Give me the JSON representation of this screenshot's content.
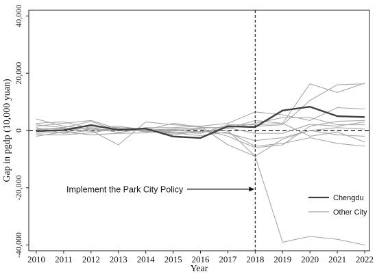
{
  "chart_data": {
    "type": "line",
    "xlabel": "Year",
    "ylabel": "Gap in pgdp (10,000 yuan)",
    "x": [
      2010,
      2011,
      2012,
      2013,
      2014,
      2015,
      2016,
      2017,
      2018,
      2019,
      2020,
      2021,
      2022
    ],
    "x_ticks": [
      "2010",
      "2011",
      "2012",
      "2013",
      "2014",
      "2015",
      "2016",
      "2017",
      "2018",
      "2019",
      "2020",
      "2021",
      "2022"
    ],
    "ylim": [
      -42000,
      42000
    ],
    "y_ticks": [
      {
        "value": 40000,
        "label": "40,000"
      },
      {
        "value": 20000,
        "label": "20,000"
      },
      {
        "value": 0,
        "label": "0"
      },
      {
        "value": -20000,
        "label": "-20,000"
      },
      {
        "value": -40000,
        "label": "-40,000"
      }
    ],
    "reference_lines": {
      "zero_line": 0,
      "policy_year": 2018
    },
    "annotation": {
      "text": "Implement the Park City Policy",
      "target_x": 2018,
      "target_y": -20500
    },
    "legend": {
      "placement": "bottom-right",
      "entries": [
        {
          "label": "Chengdu",
          "color": "#404040"
        },
        {
          "label": "Other City",
          "color": "#a8a8a8"
        }
      ]
    },
    "series": [
      {
        "name": "Chengdu",
        "role": "treated",
        "color": "#404040",
        "values": [
          -200,
          100,
          1900,
          200,
          700,
          -2100,
          -2600,
          1500,
          1200,
          7000,
          8300,
          5000,
          4700
        ]
      },
      {
        "role": "control",
        "values": [
          4000,
          1500,
          500,
          300,
          400,
          -500,
          -1000,
          2000,
          2000,
          2500,
          16300,
          13300,
          16500
        ]
      },
      {
        "role": "control",
        "values": [
          -1000,
          -500,
          500,
          0,
          200,
          500,
          800,
          1200,
          1500,
          2000,
          10500,
          16000,
          16300
        ]
      },
      {
        "role": "control",
        "values": [
          2000,
          1000,
          3200,
          -200,
          1000,
          1000,
          1500,
          2500,
          6500,
          5500,
          3500,
          8000,
          7500
        ]
      },
      {
        "role": "control",
        "values": [
          1500,
          2500,
          3500,
          500,
          0,
          -1000,
          -500,
          0,
          -9000,
          -39000,
          -37000,
          -38000,
          -40000
        ]
      },
      {
        "role": "control",
        "values": [
          -2000,
          -500,
          -1500,
          -1000,
          -800,
          0,
          500,
          -2000,
          -6000,
          -5000,
          1500,
          3200,
          3500
        ]
      },
      {
        "role": "control",
        "values": [
          1000,
          -1000,
          0,
          -5000,
          3000,
          2000,
          1500,
          -5000,
          -9000,
          -3000,
          0,
          1000,
          500
        ]
      },
      {
        "role": "control",
        "values": [
          500,
          800,
          -300,
          600,
          -300,
          0,
          -500,
          800,
          2500,
          4500,
          4500,
          2000,
          2000
        ]
      },
      {
        "role": "control",
        "values": [
          -500,
          200,
          1000,
          -700,
          600,
          -1500,
          -300,
          -1000,
          -3500,
          -2500,
          0,
          -1500,
          -2000
        ]
      },
      {
        "role": "control",
        "values": [
          2500,
          3000,
          800,
          1500,
          200,
          2500,
          1200,
          700,
          3500,
          2500,
          -2000,
          -500,
          -4000
        ]
      },
      {
        "role": "control",
        "values": [
          -1500,
          -1500,
          -800,
          800,
          -500,
          300,
          1000,
          1000,
          -1000,
          -1000,
          2200,
          1500,
          3000
        ]
      },
      {
        "role": "control",
        "values": [
          300,
          600,
          1500,
          1000,
          500,
          -800,
          -1800,
          -500,
          -5500,
          -4500,
          -2500,
          -4500,
          -5500
        ]
      }
    ]
  }
}
